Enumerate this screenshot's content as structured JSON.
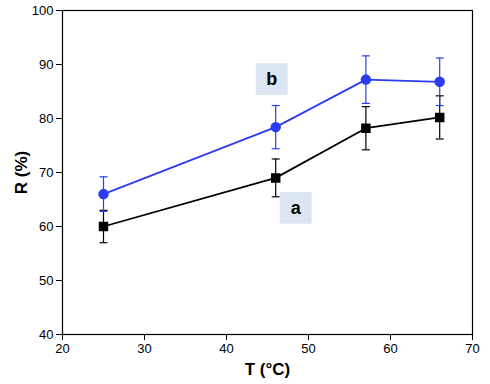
{
  "chart_data": {
    "type": "line",
    "x_label": "T (°C)",
    "y_label": "R (%)",
    "x": [
      25,
      46,
      57,
      66
    ],
    "series": [
      {
        "name": "a",
        "color": "#000000",
        "marker": "square",
        "values": [
          60,
          69,
          78.2,
          80.2
        ],
        "errors": [
          3,
          3.5,
          4,
          4
        ]
      },
      {
        "name": "b",
        "color": "#2b3cf0",
        "marker": "circle",
        "values": [
          66,
          78.4,
          87.2,
          86.8
        ],
        "errors": [
          3.2,
          4,
          4.4,
          4.4
        ]
      }
    ],
    "xlim": [
      20,
      70
    ],
    "xticks": [
      20,
      30,
      40,
      50,
      60,
      70
    ],
    "ylim": [
      40,
      100
    ],
    "yticks": [
      40,
      50,
      60,
      70,
      80,
      90,
      100
    ],
    "grid": false
  }
}
